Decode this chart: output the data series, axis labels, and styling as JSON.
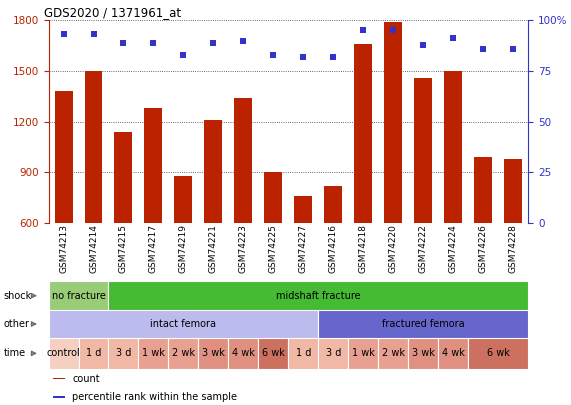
{
  "title": "GDS2020 / 1371961_at",
  "samples": [
    "GSM74213",
    "GSM74214",
    "GSM74215",
    "GSM74217",
    "GSM74219",
    "GSM74221",
    "GSM74223",
    "GSM74225",
    "GSM74227",
    "GSM74216",
    "GSM74218",
    "GSM74220",
    "GSM74222",
    "GSM74224",
    "GSM74226",
    "GSM74228"
  ],
  "counts": [
    1380,
    1500,
    1140,
    1280,
    880,
    1210,
    1340,
    900,
    760,
    820,
    1660,
    1790,
    1460,
    1500,
    990,
    980
  ],
  "percentiles": [
    93,
    93,
    89,
    89,
    83,
    89,
    90,
    83,
    82,
    82,
    95,
    95,
    88,
    91,
    86,
    86
  ],
  "ylim_left": [
    600,
    1800
  ],
  "ylim_right": [
    0,
    100
  ],
  "yticks_left": [
    600,
    900,
    1200,
    1500,
    1800
  ],
  "yticks_right": [
    0,
    25,
    50,
    75,
    100
  ],
  "bar_color": "#bb2200",
  "dot_color": "#3333cc",
  "bg_color": "#ffffff",
  "chart_bg": "#ffffff",
  "shock_row": {
    "groups": [
      {
        "label": "no fracture",
        "start": 0,
        "end": 2,
        "color": "#99cc77"
      },
      {
        "label": "midshaft fracture",
        "start": 2,
        "end": 16,
        "color": "#44bb33"
      }
    ]
  },
  "other_row": {
    "groups": [
      {
        "label": "intact femora",
        "start": 0,
        "end": 9,
        "color": "#bbbbee"
      },
      {
        "label": "fractured femora",
        "start": 9,
        "end": 16,
        "color": "#6666cc"
      }
    ]
  },
  "time_row": {
    "cells": [
      {
        "label": "control",
        "start": 0,
        "end": 1,
        "color": "#f5cfc0"
      },
      {
        "label": "1 d",
        "start": 1,
        "end": 2,
        "color": "#f0b8a5"
      },
      {
        "label": "3 d",
        "start": 2,
        "end": 3,
        "color": "#f0b8a5"
      },
      {
        "label": "1 wk",
        "start": 3,
        "end": 4,
        "color": "#e8a090"
      },
      {
        "label": "2 wk",
        "start": 4,
        "end": 5,
        "color": "#e8a090"
      },
      {
        "label": "3 wk",
        "start": 5,
        "end": 6,
        "color": "#e09080"
      },
      {
        "label": "4 wk",
        "start": 6,
        "end": 7,
        "color": "#e09080"
      },
      {
        "label": "6 wk",
        "start": 7,
        "end": 8,
        "color": "#cc7060"
      },
      {
        "label": "1 d",
        "start": 8,
        "end": 9,
        "color": "#f0b8a5"
      },
      {
        "label": "3 d",
        "start": 9,
        "end": 10,
        "color": "#f0b8a5"
      },
      {
        "label": "1 wk",
        "start": 10,
        "end": 11,
        "color": "#e8a090"
      },
      {
        "label": "2 wk",
        "start": 11,
        "end": 12,
        "color": "#e8a090"
      },
      {
        "label": "3 wk",
        "start": 12,
        "end": 13,
        "color": "#e09080"
      },
      {
        "label": "4 wk",
        "start": 13,
        "end": 14,
        "color": "#e09080"
      },
      {
        "label": "6 wk",
        "start": 14,
        "end": 16,
        "color": "#cc7060"
      }
    ]
  },
  "row_labels": [
    "shock",
    "other",
    "time"
  ],
  "legend_items": [
    {
      "label": "count",
      "color": "#bb2200"
    },
    {
      "label": "percentile rank within the sample",
      "color": "#3333cc"
    }
  ]
}
